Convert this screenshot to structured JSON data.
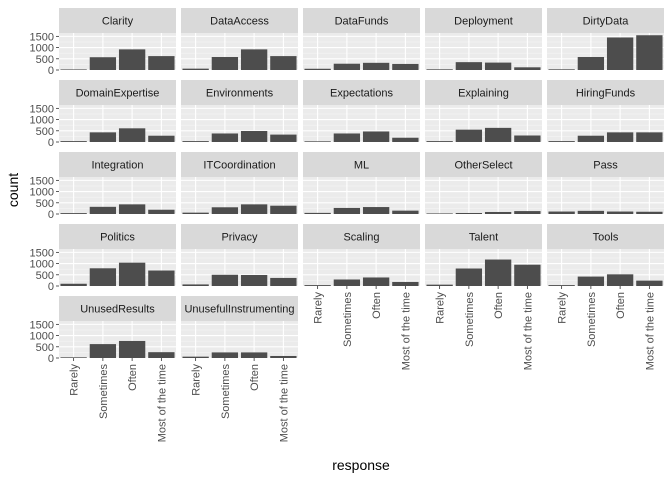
{
  "colors": {
    "panel_bg": "#ebebeb",
    "grid_major": "#ffffff",
    "grid_minor": "#f5f5f5",
    "strip_bg": "#d9d9d9",
    "bar": "#4d4d4d",
    "text": "#4d4d4d"
  },
  "chart_data": {
    "type": "bar",
    "layout": "facet_wrap",
    "ncol": 5,
    "xlabel": "response",
    "ylabel": "count",
    "categories": [
      "Rarely",
      "Sometimes",
      "Often",
      "Most of the time"
    ],
    "ylim": [
      0,
      1650
    ],
    "yticks": [
      0,
      500,
      1000,
      1500
    ],
    "grid": true,
    "panels": [
      {
        "name": "Clarity",
        "values": [
          25,
          570,
          920,
          620
        ]
      },
      {
        "name": "DataAccess",
        "values": [
          60,
          580,
          920,
          620
        ]
      },
      {
        "name": "DataFunds",
        "values": [
          55,
          280,
          320,
          270
        ]
      },
      {
        "name": "Deployment",
        "values": [
          30,
          350,
          330,
          120
        ]
      },
      {
        "name": "DirtyData",
        "values": [
          30,
          580,
          1450,
          1550
        ]
      },
      {
        "name": "DomainExpertise",
        "values": [
          40,
          430,
          610,
          280
        ]
      },
      {
        "name": "Environments",
        "values": [
          40,
          380,
          490,
          330
        ]
      },
      {
        "name": "Expectations",
        "values": [
          30,
          380,
          470,
          190
        ]
      },
      {
        "name": "Explaining",
        "values": [
          40,
          550,
          630,
          290
        ]
      },
      {
        "name": "HiringFunds",
        "values": [
          40,
          280,
          430,
          430
        ]
      },
      {
        "name": "Integration",
        "values": [
          40,
          320,
          430,
          190
        ]
      },
      {
        "name": "ITCoordination",
        "values": [
          60,
          300,
          430,
          370
        ]
      },
      {
        "name": "ML",
        "values": [
          50,
          270,
          310,
          150
        ]
      },
      {
        "name": "OtherSelect",
        "values": [
          25,
          45,
          90,
          130
        ]
      },
      {
        "name": "Pass",
        "values": [
          110,
          140,
          110,
          100
        ]
      },
      {
        "name": "Politics",
        "values": [
          100,
          790,
          1040,
          690
        ]
      },
      {
        "name": "Privacy",
        "values": [
          70,
          500,
          490,
          360
        ]
      },
      {
        "name": "Scaling",
        "values": [
          40,
          290,
          380,
          180
        ]
      },
      {
        "name": "Talent",
        "values": [
          60,
          780,
          1180,
          950
        ]
      },
      {
        "name": "Tools",
        "values": [
          40,
          420,
          520,
          240
        ]
      },
      {
        "name": "UnusedResults",
        "values": [
          30,
          620,
          760,
          260
        ]
      },
      {
        "name": "UnusefulInstrumenting",
        "values": [
          60,
          250,
          250,
          90
        ]
      }
    ]
  }
}
